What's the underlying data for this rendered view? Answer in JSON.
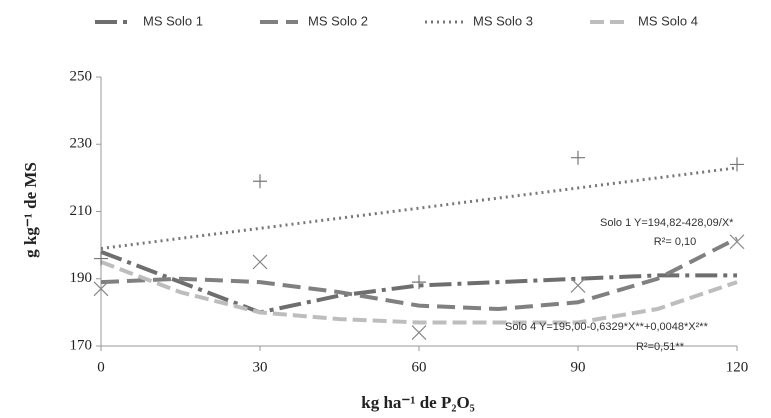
{
  "chart_data": {
    "type": "line",
    "x_label": "kg ha⁻¹ de P₂O₅",
    "y_label": "g kg⁻¹ de MS",
    "x": [
      0,
      15,
      30,
      45,
      60,
      75,
      90,
      105,
      120
    ],
    "series": [
      {
        "name": "MS Solo 1",
        "color": "#6e6e6e",
        "dash": "22,6,4,6",
        "width": 4,
        "values": [
          198,
          189,
          180,
          185,
          188,
          189,
          190,
          191,
          191
        ]
      },
      {
        "name": "MS Solo 2",
        "color": "#808080",
        "dash": "18,8",
        "width": 4,
        "values": [
          189,
          190,
          189,
          186,
          182,
          181,
          183,
          190,
          202
        ]
      },
      {
        "name": "MS Solo 3",
        "color": "#777777",
        "dash": "2,4",
        "width": 3,
        "values": [
          199,
          202,
          205,
          208,
          211,
          214,
          217,
          220,
          223
        ]
      },
      {
        "name": "MS Solo 4",
        "color": "#bdbdbd",
        "dash": "14,6",
        "width": 4,
        "values": [
          195,
          186,
          180,
          178,
          177,
          177,
          177,
          181,
          189
        ]
      }
    ],
    "points": [
      {
        "marker": "plus",
        "color": "#777777",
        "x": [
          0,
          30,
          60,
          90,
          120
        ],
        "values": [
          196,
          219,
          189,
          226,
          224
        ]
      },
      {
        "marker": "cross",
        "color": "#888888",
        "x": [
          0,
          30,
          60,
          90,
          120
        ],
        "values": [
          187,
          195,
          174,
          188,
          201
        ]
      }
    ],
    "annotations": [
      "Solo 1 Y=194,82-428,09/X*",
      "R²= 0,10",
      "Solo 4 Y=195,00-0,6329*X**+0,0048*X²**",
      "R²=0,51**"
    ],
    "xlim": [
      0,
      120
    ],
    "xticks": [
      0,
      30,
      60,
      90,
      120
    ],
    "ylim": [
      170,
      250
    ],
    "yticks": [
      170,
      190,
      210,
      230,
      250
    ],
    "grid": false
  }
}
